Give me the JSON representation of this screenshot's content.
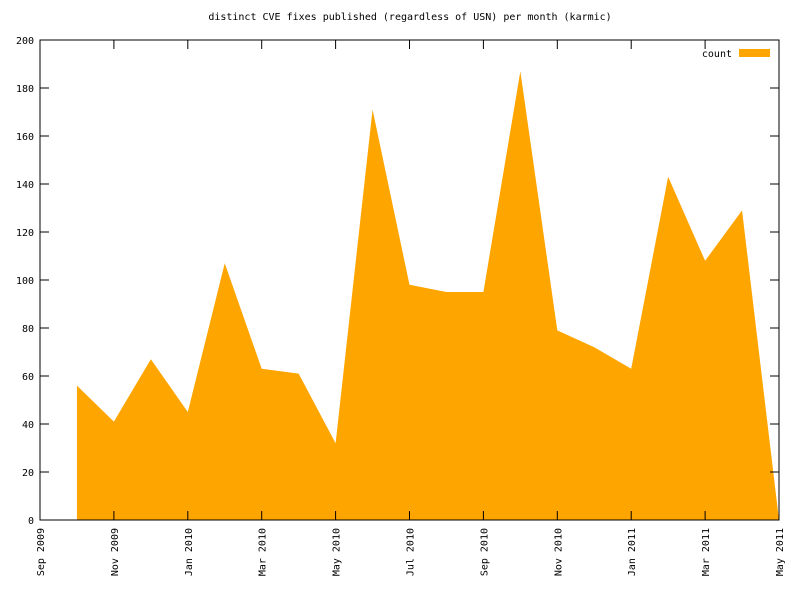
{
  "chart_data": {
    "type": "area",
    "title": "distinct CVE fixes published (regardless of USN) per month (karmic)",
    "x": [
      "2009-10",
      "2009-11",
      "2009-12",
      "2010-01",
      "2010-02",
      "2010-03",
      "2010-04",
      "2010-05",
      "2010-06",
      "2010-07",
      "2010-08",
      "2010-09",
      "2010-10",
      "2010-11",
      "2010-12",
      "2011-01",
      "2011-02",
      "2011-03",
      "2011-04",
      "2011-05"
    ],
    "series": [
      {
        "name": "count",
        "color": "#ffa500",
        "values": [
          56,
          41,
          67,
          45,
          107,
          63,
          61,
          32,
          171,
          98,
          95,
          95,
          187,
          79,
          72,
          63,
          143,
          108,
          129,
          0
        ]
      }
    ],
    "xlim": [
      "2009-09",
      "2011-05"
    ],
    "xticks": [
      {
        "value": "2009-09",
        "label": "Sep 2009"
      },
      {
        "value": "2009-11",
        "label": "Nov 2009"
      },
      {
        "value": "2010-01",
        "label": "Jan 2010"
      },
      {
        "value": "2010-03",
        "label": "Mar 2010"
      },
      {
        "value": "2010-05",
        "label": "May 2010"
      },
      {
        "value": "2010-07",
        "label": "Jul 2010"
      },
      {
        "value": "2010-09",
        "label": "Sep 2010"
      },
      {
        "value": "2010-11",
        "label": "Nov 2010"
      },
      {
        "value": "2011-01",
        "label": "Jan 2011"
      },
      {
        "value": "2011-03",
        "label": "Mar 2011"
      },
      {
        "value": "2011-05",
        "label": "May 2011"
      }
    ],
    "ylim": [
      0,
      200
    ],
    "yticks": [
      0,
      20,
      40,
      60,
      80,
      100,
      120,
      140,
      160,
      180,
      200
    ],
    "legend": "top-right"
  }
}
